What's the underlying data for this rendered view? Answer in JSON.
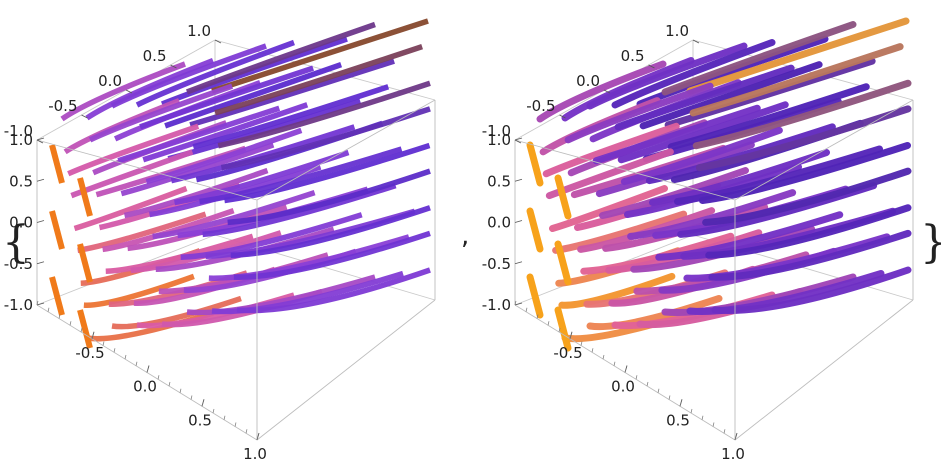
{
  "output": {
    "open_brace": "{",
    "separator": ",",
    "close_brace": "}"
  },
  "chart_data": [
    {
      "type": "3d-stream-tubes",
      "style": "ribbons",
      "title": "",
      "xlim": [
        -1.0,
        1.0
      ],
      "ylim": [
        -1.0,
        1.0
      ],
      "zlim": [
        -1.0,
        1.0
      ],
      "x_ticks": [
        "-0.5",
        "0.0",
        "0.5",
        "1.0"
      ],
      "y_ticks": [
        "-1.0",
        "-0.5",
        "0.0",
        "0.5",
        "1.0"
      ],
      "z_ticks": [
        "-1.0",
        "-0.5",
        "0.0",
        "0.5",
        "1.0"
      ],
      "colors": [
        "#f07a1a",
        "#d85aa8",
        "#8a3fd6",
        "#5a2bd0",
        "#8a4a1e"
      ]
    },
    {
      "type": "3d-stream-tubes",
      "style": "tubes",
      "title": "",
      "xlim": [
        -1.0,
        1.0
      ],
      "ylim": [
        -1.0,
        1.0
      ],
      "zlim": [
        -1.0,
        1.0
      ],
      "x_ticks": [
        "-0.5",
        "0.0",
        "0.5",
        "1.0"
      ],
      "y_ticks": [
        "-1.0",
        "-0.5",
        "0.0",
        "0.5",
        "1.0"
      ],
      "z_ticks": [
        "-1.0",
        "-0.5",
        "0.0",
        "0.5",
        "1.0"
      ],
      "colors": [
        "#f7a21b",
        "#e0609a",
        "#7a35c8",
        "#4b22b5",
        "#f0a030"
      ]
    }
  ]
}
